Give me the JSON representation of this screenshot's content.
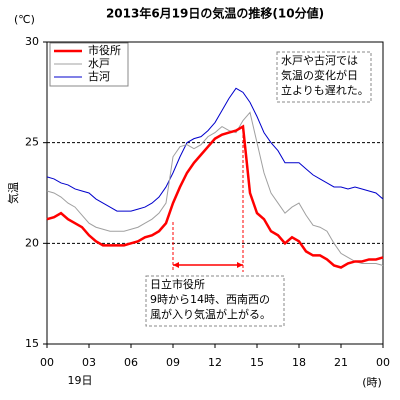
{
  "chart_data": {
    "type": "line",
    "title": "2013年6月19日の気温の推移(10分値)",
    "y_unit": "(℃)",
    "y_label": "気温",
    "x_date": "19日",
    "x_unit": "(時)",
    "x": [
      0,
      0.5,
      1,
      1.5,
      2,
      2.5,
      3,
      3.5,
      4,
      4.5,
      5,
      5.5,
      6,
      6.5,
      7,
      7.5,
      8,
      8.5,
      9,
      9.5,
      10,
      10.5,
      11,
      11.5,
      12,
      12.5,
      13,
      13.5,
      14,
      14.5,
      15,
      15.5,
      16,
      16.5,
      17,
      17.5,
      18,
      18.5,
      19,
      19.5,
      20,
      20.5,
      21,
      21.5,
      22,
      22.5,
      23,
      23.5,
      24
    ],
    "series": [
      {
        "name": "市役所",
        "color": "#ff0000",
        "width": 2.5,
        "values": [
          21.2,
          21.3,
          21.5,
          21.2,
          21.0,
          20.8,
          20.4,
          20.1,
          19.9,
          19.9,
          19.9,
          19.9,
          20.0,
          20.1,
          20.3,
          20.4,
          20.6,
          21.0,
          22.0,
          22.8,
          23.5,
          24.0,
          24.4,
          24.8,
          25.2,
          25.4,
          25.5,
          25.6,
          25.8,
          22.5,
          21.5,
          21.2,
          20.6,
          20.4,
          20.0,
          20.3,
          20.1,
          19.6,
          19.4,
          19.4,
          19.2,
          18.9,
          18.8,
          19.0,
          19.1,
          19.1,
          19.2,
          19.2,
          19.3
        ]
      },
      {
        "name": "水戸",
        "color": "#a0a0a0",
        "width": 1,
        "values": [
          22.6,
          22.5,
          22.3,
          22.0,
          21.8,
          21.4,
          21.0,
          20.8,
          20.7,
          20.6,
          20.6,
          20.6,
          20.7,
          20.8,
          21.0,
          21.2,
          21.5,
          22.0,
          24.3,
          24.8,
          24.9,
          24.7,
          24.9,
          25.3,
          25.5,
          25.8,
          25.6,
          25.5,
          26.1,
          26.5,
          25.0,
          23.5,
          22.5,
          22.0,
          21.5,
          21.8,
          22.0,
          21.4,
          20.9,
          20.8,
          20.6,
          20.0,
          19.5,
          19.3,
          19.1,
          19.0,
          19.0,
          19.0,
          18.9
        ]
      },
      {
        "name": "古河",
        "color": "#0000cc",
        "width": 1,
        "values": [
          23.3,
          23.2,
          23.0,
          22.9,
          22.7,
          22.6,
          22.5,
          22.2,
          22.0,
          21.8,
          21.6,
          21.6,
          21.6,
          21.7,
          21.8,
          22.0,
          22.3,
          22.8,
          23.5,
          24.3,
          25.0,
          25.2,
          25.3,
          25.6,
          26.0,
          26.6,
          27.2,
          27.7,
          27.5,
          27.0,
          26.3,
          25.5,
          25.0,
          24.6,
          24.0,
          24.0,
          24.0,
          23.7,
          23.4,
          23.2,
          23.0,
          22.8,
          22.8,
          22.7,
          22.8,
          22.7,
          22.6,
          22.5,
          22.2
        ]
      }
    ],
    "xlim": [
      0,
      24
    ],
    "xticks": [
      {
        "value": 0,
        "label": "00"
      },
      {
        "value": 3,
        "label": "03"
      },
      {
        "value": 6,
        "label": "06"
      },
      {
        "value": 9,
        "label": "09"
      },
      12,
      15,
      18,
      21,
      {
        "value": 24,
        "label": "00"
      }
    ],
    "ylim": [
      15,
      30
    ],
    "yticks": [
      15,
      20,
      25,
      30
    ],
    "reference_lines": [
      20,
      25
    ],
    "highlight_range": [
      9,
      14
    ],
    "highlight_color": "#ff0000",
    "legend": "upper left",
    "annotations": [
      {
        "lines": [
          "水戸や古河では",
          "気温の変化が日",
          "立よりも遅れた。"
        ]
      },
      {
        "lines": [
          "日立市役所",
          "9時から14時、西南西の",
          "風が入り気温が上がる。"
        ]
      }
    ]
  }
}
